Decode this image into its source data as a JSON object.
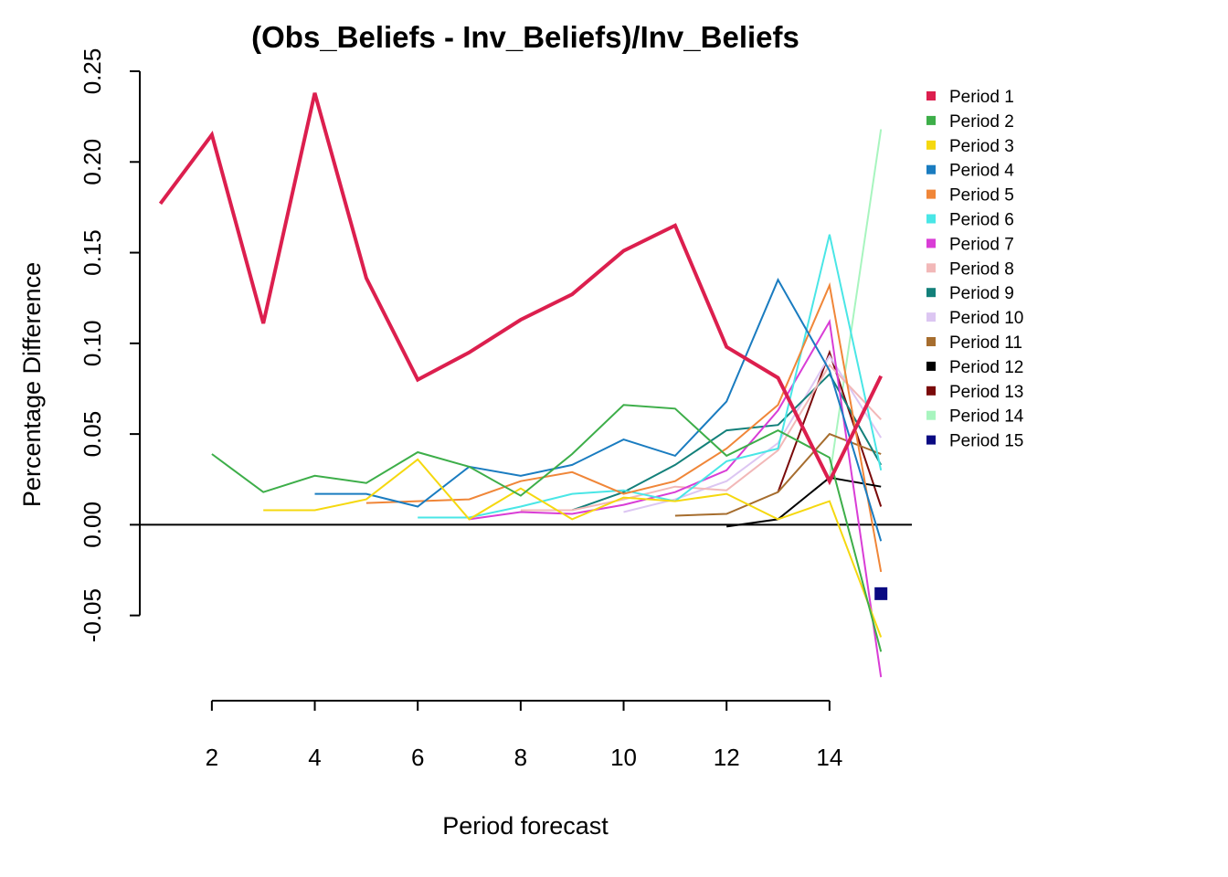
{
  "chart_data": {
    "type": "line",
    "title": "(Obs_Beliefs - Inv_Beliefs)/Inv_Beliefs",
    "xlabel": "Period forecast",
    "ylabel": "Percentage Difference",
    "xlim": [
      0.6,
      15.6
    ],
    "ylim": [
      -0.097,
      0.25
    ],
    "xticks": [
      2,
      4,
      6,
      8,
      10,
      12,
      14
    ],
    "xtick_labels": [
      "2",
      "4",
      "6",
      "8",
      "10",
      "12",
      "14"
    ],
    "yticks": [
      -0.05,
      0,
      0.05,
      0.1,
      0.15,
      0.2,
      0.25
    ],
    "ytick_labels": [
      "-0.05",
      "0.00",
      "0.05",
      "0.10",
      "0.15",
      "0.20",
      "0.25"
    ],
    "reference_line_y": 0,
    "legend_position": "right",
    "series": [
      {
        "name": "Period 1",
        "color": "#DC1F4E",
        "width": 4,
        "x": [
          1,
          2,
          3,
          4,
          5,
          6,
          7,
          8,
          9,
          10,
          11,
          12,
          13,
          14,
          15
        ],
        "values": [
          0.177,
          0.215,
          0.111,
          0.238,
          0.136,
          0.08,
          0.095,
          0.113,
          0.127,
          0.151,
          0.165,
          0.098,
          0.081,
          0.024,
          0.082
        ]
      },
      {
        "name": "Period 2",
        "color": "#3DAE49",
        "width": 2,
        "x": [
          2,
          3,
          4,
          5,
          6,
          7,
          8,
          9,
          10,
          11,
          12,
          13,
          14,
          15
        ],
        "values": [
          0.039,
          0.018,
          0.027,
          0.023,
          0.04,
          0.032,
          0.016,
          0.039,
          0.066,
          0.064,
          0.038,
          0.052,
          0.037,
          -0.07
        ]
      },
      {
        "name": "Period 3",
        "color": "#F5D80F",
        "width": 2,
        "x": [
          3,
          4,
          5,
          6,
          7,
          8,
          9,
          10,
          11,
          12,
          13,
          14,
          15
        ],
        "values": [
          0.008,
          0.008,
          0.014,
          0.036,
          0.003,
          0.02,
          0.003,
          0.015,
          0.013,
          0.017,
          0.003,
          0.013,
          -0.062
        ]
      },
      {
        "name": "Period 4",
        "color": "#1A7CC0",
        "width": 2,
        "x": [
          4,
          5,
          6,
          7,
          8,
          9,
          10,
          11,
          12,
          13,
          14,
          15
        ],
        "values": [
          0.017,
          0.017,
          0.01,
          0.032,
          0.027,
          0.033,
          0.047,
          0.038,
          0.068,
          0.135,
          0.085,
          -0.009
        ]
      },
      {
        "name": "Period 5",
        "color": "#F08638",
        "width": 2,
        "x": [
          5,
          6,
          7,
          8,
          9,
          10,
          11,
          12,
          13,
          14,
          15
        ],
        "values": [
          0.012,
          0.013,
          0.014,
          0.024,
          0.029,
          0.017,
          0.024,
          0.042,
          0.066,
          0.132,
          -0.026
        ]
      },
      {
        "name": "Period 6",
        "color": "#49E6E6",
        "width": 2,
        "x": [
          6,
          7,
          8,
          9,
          10,
          11,
          12,
          13,
          14,
          15
        ],
        "values": [
          0.004,
          0.004,
          0.01,
          0.017,
          0.019,
          0.013,
          0.035,
          0.042,
          0.16,
          0.03
        ]
      },
      {
        "name": "Period 7",
        "color": "#D93DD6",
        "width": 2,
        "x": [
          7,
          8,
          9,
          10,
          11,
          12,
          13,
          14,
          15
        ],
        "values": [
          0.003,
          0.007,
          0.006,
          0.011,
          0.018,
          0.03,
          0.063,
          0.112,
          -0.084
        ]
      },
      {
        "name": "Period 8",
        "color": "#F2B8B8",
        "width": 2,
        "x": [
          8,
          9,
          10,
          11,
          12,
          13,
          14,
          15
        ],
        "values": [
          0.008,
          0.008,
          0.014,
          0.021,
          0.019,
          0.041,
          0.088,
          0.058
        ]
      },
      {
        "name": "Period 9",
        "color": "#13807A",
        "width": 2,
        "x": [
          9,
          10,
          11,
          12,
          13,
          14,
          15
        ],
        "values": [
          0.008,
          0.018,
          0.033,
          0.052,
          0.055,
          0.083,
          0.033
        ]
      },
      {
        "name": "Period 10",
        "color": "#DCC6F2",
        "width": 2,
        "x": [
          10,
          11,
          12,
          13,
          14,
          15
        ],
        "values": [
          0.007,
          0.014,
          0.024,
          0.045,
          0.093,
          0.048
        ]
      },
      {
        "name": "Period 11",
        "color": "#A66D2E",
        "width": 2,
        "x": [
          11,
          12,
          13,
          14,
          15
        ],
        "values": [
          0.005,
          0.006,
          0.018,
          0.05,
          0.039
        ]
      },
      {
        "name": "Period 12",
        "color": "#000000",
        "width": 2,
        "x": [
          12,
          13,
          14,
          15
        ],
        "values": [
          -0.001,
          0.003,
          0.026,
          0.021
        ]
      },
      {
        "name": "Period 13",
        "color": "#7A0A0A",
        "width": 2,
        "x": [
          13,
          14,
          15
        ],
        "values": [
          0.018,
          0.095,
          0.01
        ]
      },
      {
        "name": "Period 14",
        "color": "#A8F5BF",
        "width": 2,
        "x": [
          14,
          15
        ],
        "values": [
          0.026,
          0.218
        ]
      },
      {
        "name": "Period 15",
        "color": "#0A0A82",
        "width": 2,
        "x": [
          15
        ],
        "values": [
          -0.038
        ]
      }
    ]
  }
}
